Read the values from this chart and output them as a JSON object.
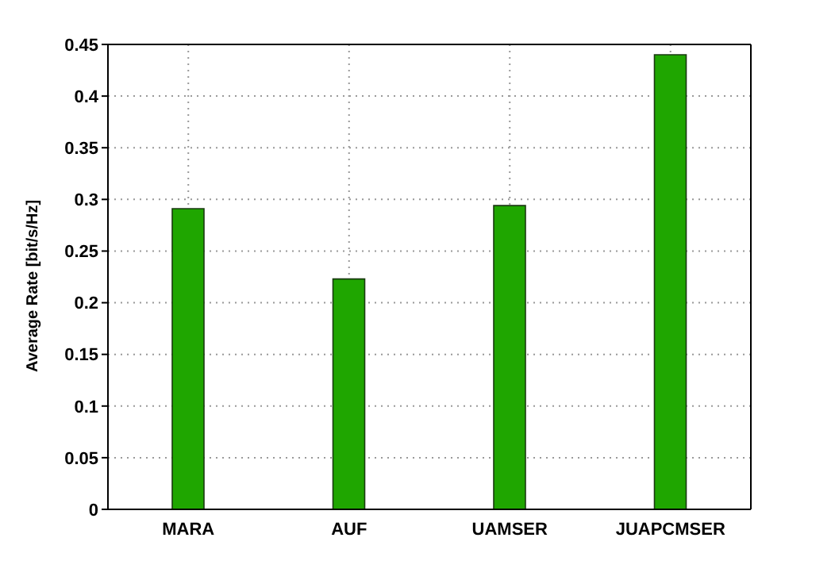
{
  "chart_data": {
    "type": "bar",
    "ylabel": "Average Rate [bit/s/Hz]",
    "categories": [
      "MARA",
      "AUF",
      "UAMSER",
      "JUAPCMSER"
    ],
    "values": [
      0.291,
      0.223,
      0.294,
      0.44
    ],
    "color": "#1fa600",
    "ylim": [
      0,
      0.45
    ],
    "yticks": [
      0,
      0.05,
      0.1,
      0.15,
      0.2,
      0.25,
      0.3,
      0.35,
      0.4,
      0.45
    ],
    "grid": true
  }
}
